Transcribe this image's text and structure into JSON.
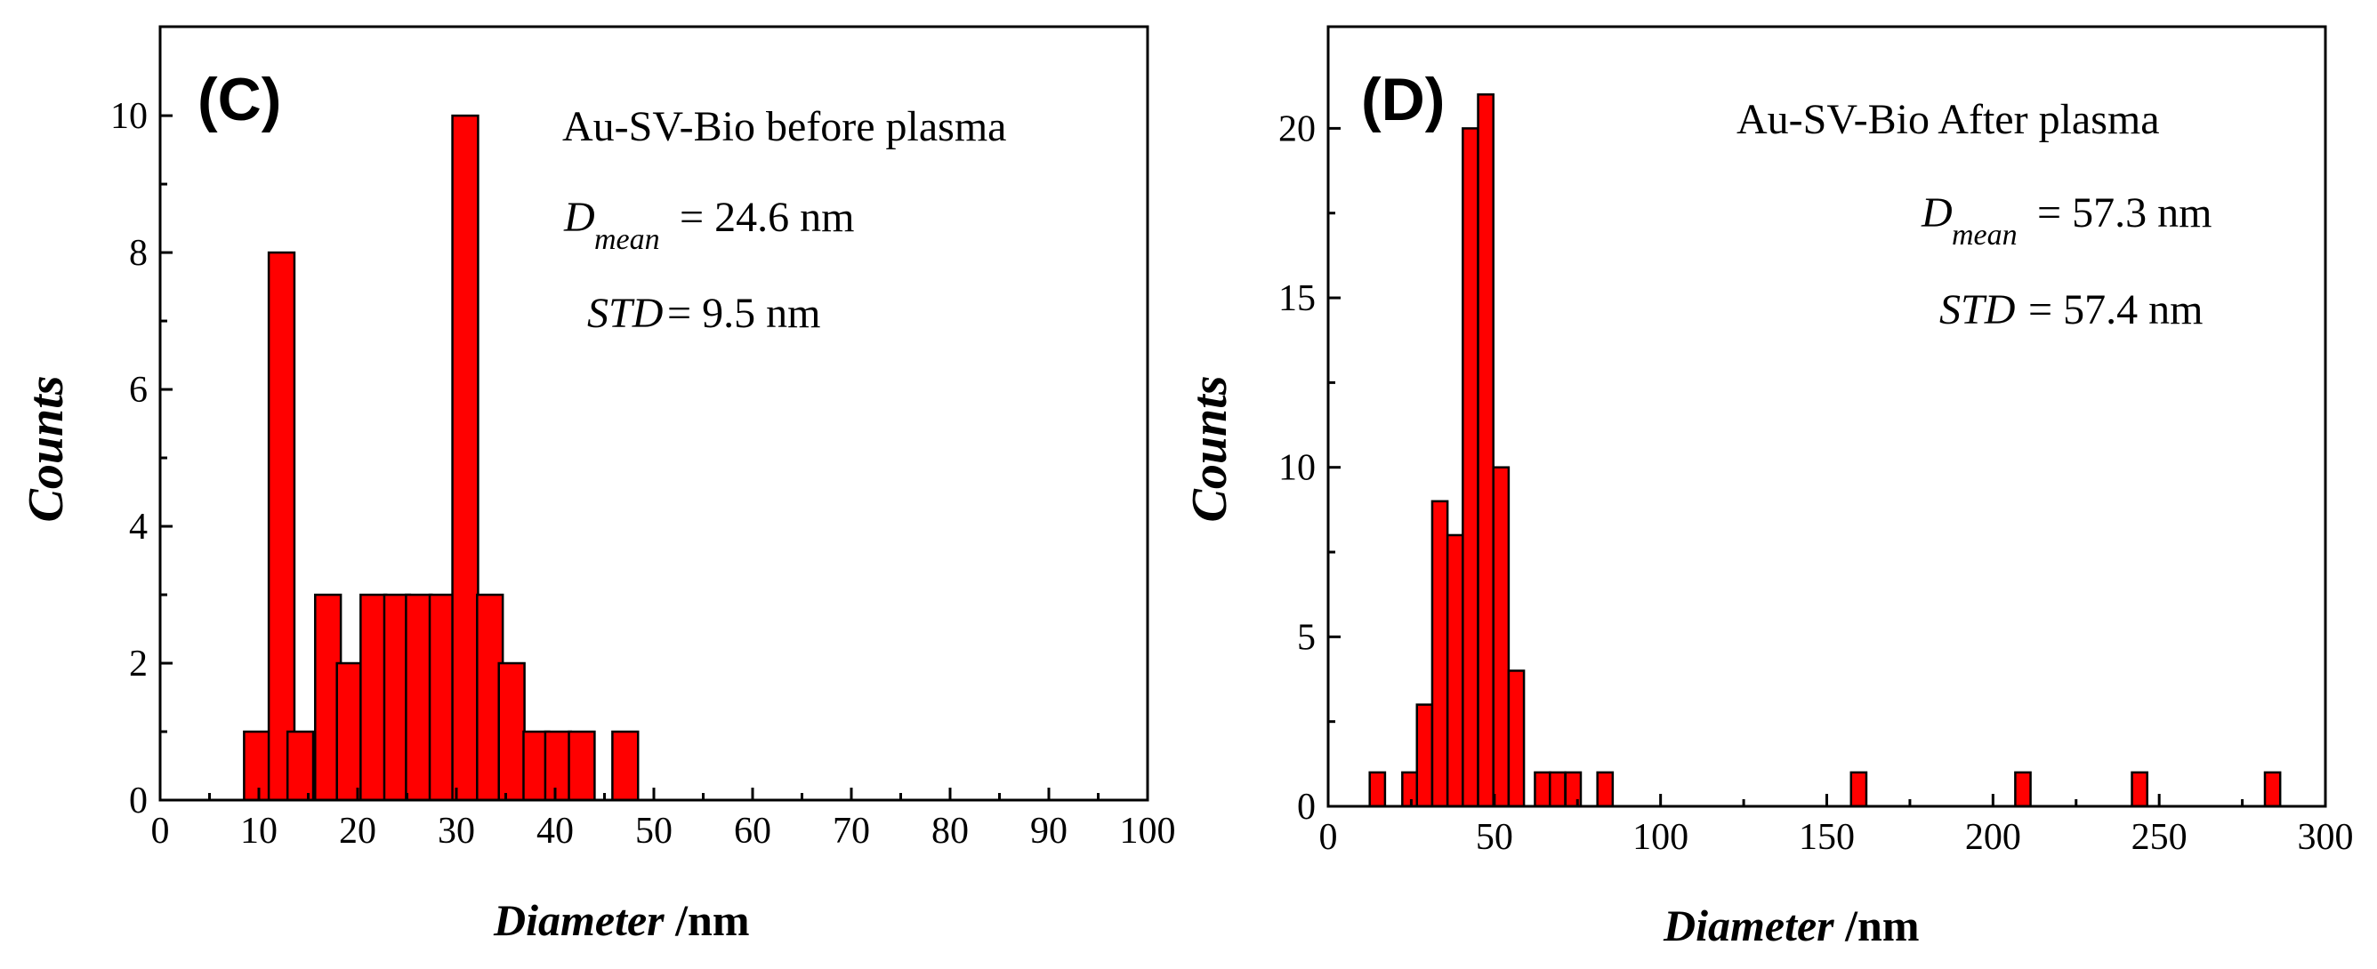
{
  "chart_data": [
    {
      "type": "bar",
      "panel_label": "(C)",
      "title": "Au-SV-Bio before plasma",
      "mean_symbol": "D",
      "mean_subscript": "mean",
      "mean_text": "= 24.6 nm",
      "std_symbol": "STD",
      "std_text": "= 9.5 nm",
      "xlabel_italic": "Diameter",
      "xlabel_unit": " /nm",
      "ylabel": "Counts",
      "xlim": [
        0,
        100
      ],
      "ylim": [
        0,
        11.3
      ],
      "xticks": [
        0,
        10,
        20,
        30,
        40,
        50,
        60,
        70,
        80,
        90,
        100
      ],
      "yticks": [
        0,
        2,
        4,
        6,
        8,
        10
      ],
      "bin_width": 2.6,
      "x": [
        9.8,
        12.3,
        14.2,
        17.0,
        19.2,
        21.6,
        24.0,
        26.2,
        28.6,
        30.9,
        33.4,
        35.6,
        38.1,
        40.3,
        42.7,
        47.1
      ],
      "values": [
        1,
        8,
        1,
        3,
        2,
        3,
        3,
        3,
        3,
        10,
        3,
        2,
        1,
        1,
        1,
        1
      ]
    },
    {
      "type": "bar",
      "panel_label": "(D)",
      "title": "Au-SV-Bio After plasma",
      "mean_symbol": "D",
      "mean_subscript": "mean",
      "mean_text": "= 57.3 nm",
      "std_symbol": "STD",
      "std_text": "= 57.4 nm",
      "xlabel_italic": "Diameter",
      "xlabel_unit": " /nm",
      "ylabel": "Counts",
      "xlim": [
        0,
        300
      ],
      "ylim": [
        0,
        23
      ],
      "xticks": [
        0,
        50,
        100,
        150,
        200,
        250,
        300
      ],
      "yticks": [
        0,
        5,
        10,
        15,
        20
      ],
      "bin_width": 4.6,
      "x": [
        14.8,
        24.6,
        29.0,
        33.6,
        38.2,
        42.8,
        47.4,
        52.0,
        56.6,
        64.5,
        69.0,
        73.7,
        83.3,
        159.6,
        209.0,
        244.1,
        284.1
      ],
      "values": [
        1,
        1,
        3,
        9,
        8,
        20,
        21,
        10,
        4,
        1,
        1,
        1,
        1,
        1,
        1,
        1,
        1
      ]
    }
  ]
}
